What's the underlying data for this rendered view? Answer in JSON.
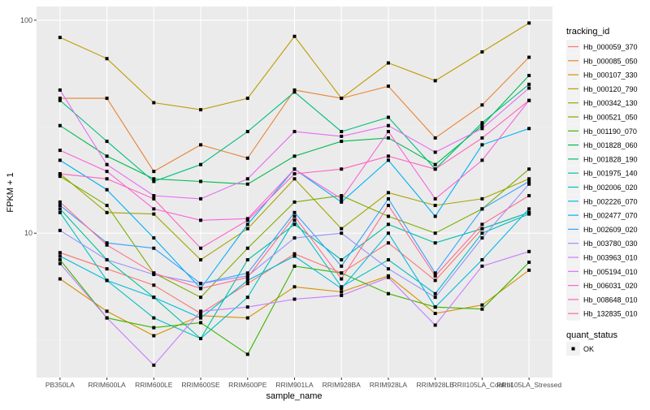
{
  "chart_data": {
    "type": "line",
    "xlabel": "sample_name",
    "ylabel": "FPKM + 1",
    "y_scale": "log10",
    "ylim": [
      2.1,
      116
    ],
    "y_ticks": [
      10,
      100
    ],
    "y_tick_labels": [
      "10",
      "100"
    ],
    "grid": true,
    "legend_placement": "right",
    "categories": [
      "PB350LA",
      "RRIM600LA",
      "RRIM600LE",
      "RRIM600SE",
      "RRIM600PE",
      "RRIM901LA",
      "RRIM928BA",
      "RRIM928LA",
      "RRIM928LE",
      "RRII105LA_Control",
      "RRII105LA_Stressed"
    ],
    "legend_title": "tracking_id",
    "series": [
      {
        "name": "Hb_000059_370",
        "color": "#F8766D",
        "values": [
          8.1,
          6.8,
          5.7,
          4.2,
          5.8,
          8.0,
          6.5,
          9.0,
          6.0,
          10.5,
          12.5
        ]
      },
      {
        "name": "Hb_000085_050",
        "color": "#EA8331",
        "values": [
          43,
          43,
          19.5,
          26,
          22.5,
          47,
          43,
          49,
          28,
          40,
          67
        ]
      },
      {
        "name": "Hb_000107_330",
        "color": "#D89000",
        "values": [
          6.1,
          4.3,
          3.3,
          4.1,
          4.0,
          5.6,
          5.3,
          6.3,
          4.2,
          4.6,
          6.7
        ]
      },
      {
        "name": "Hb_000120_790",
        "color": "#C09B00",
        "values": [
          83,
          66,
          41,
          38,
          43,
          84,
          43,
          63,
          52,
          71,
          97
        ]
      },
      {
        "name": "Hb_000342_130",
        "color": "#A3A500",
        "values": [
          19,
          12.5,
          12.3,
          7.5,
          10.5,
          18,
          10.5,
          15.5,
          13.5,
          14.5,
          18
        ]
      },
      {
        "name": "Hb_000521_050",
        "color": "#7CAE00",
        "values": [
          18.5,
          13.5,
          6.5,
          5.0,
          8.5,
          14,
          15,
          12,
          10,
          13,
          20
        ]
      },
      {
        "name": "Hb_001190_070",
        "color": "#39B600",
        "values": [
          7.5,
          4.0,
          3.6,
          3.8,
          2.7,
          7.0,
          6.5,
          5.2,
          4.5,
          4.4,
          7.3
        ]
      },
      {
        "name": "Hb_001828_060",
        "color": "#00BB4E",
        "values": [
          32,
          23,
          18,
          17.5,
          17,
          23,
          27,
          28,
          21,
          32,
          55
        ]
      },
      {
        "name": "Hb_001828_190",
        "color": "#00BF7D",
        "values": [
          42,
          27,
          17.5,
          21,
          30,
          46,
          30,
          35,
          20,
          33,
          50
        ]
      },
      {
        "name": "Hb_001975_140",
        "color": "#00C1A3",
        "values": [
          13,
          7.5,
          5.0,
          3.2,
          7.5,
          11,
          7.5,
          11,
          9,
          10.5,
          12.5
        ]
      },
      {
        "name": "Hb_002006_020",
        "color": "#00BFC4",
        "values": [
          12.5,
          6.0,
          4.0,
          3.2,
          5.0,
          11.5,
          5.6,
          7.5,
          5.2,
          10,
          12.3
        ]
      },
      {
        "name": "Hb_002226_070",
        "color": "#00BAE0",
        "values": [
          7.8,
          6.0,
          5.0,
          4.0,
          6.0,
          7.8,
          5.5,
          10,
          4.5,
          7.5,
          13
        ]
      },
      {
        "name": "Hb_002477_070",
        "color": "#00B0F6",
        "values": [
          22,
          16,
          9.5,
          5.5,
          11,
          20,
          14,
          22,
          12,
          26,
          31
        ]
      },
      {
        "name": "Hb_002609_020",
        "color": "#35A2FF",
        "values": [
          13.5,
          9,
          8.5,
          5.8,
          6.5,
          12.5,
          7,
          14.5,
          6.5,
          13,
          17.5
        ]
      },
      {
        "name": "Hb_003780_030",
        "color": "#9590FF",
        "values": [
          10.3,
          7.5,
          6.4,
          5.8,
          6.3,
          9.5,
          10,
          6.8,
          5.0,
          9.5,
          17
        ]
      },
      {
        "name": "Hb_003963_010",
        "color": "#C77CFF",
        "values": [
          7.2,
          4.0,
          2.4,
          4.3,
          4.5,
          4.9,
          5.1,
          6.2,
          3.7,
          7,
          8.2
        ]
      },
      {
        "name": "Hb_005194_010",
        "color": "#E76BF3",
        "values": [
          47,
          21,
          15,
          14.5,
          18,
          30,
          28.5,
          32,
          24,
          31,
          48
        ]
      },
      {
        "name": "Hb_006031_020",
        "color": "#FA62DB",
        "values": [
          24.5,
          19.5,
          13,
          11.5,
          11.7,
          20,
          14.5,
          30,
          14.5,
          22,
          42
        ]
      },
      {
        "name": "Hb_008648_010",
        "color": "#FF62BC",
        "values": [
          19,
          18,
          14.5,
          8.5,
          11.5,
          19,
          20,
          23,
          20,
          28,
          42
        ]
      },
      {
        "name": "Hb_132835_010",
        "color": "#FF6C91",
        "values": [
          14,
          8.8,
          6.5,
          5.5,
          6.2,
          12,
          6.1,
          13.5,
          6.3,
          11,
          15
        ]
      }
    ],
    "shape_legend": {
      "title": "quant_status",
      "items": [
        "OK"
      ]
    },
    "colors": {
      "panel": "#EBEBEB",
      "grid": "#FFFFFF",
      "point": "#000000"
    }
  }
}
